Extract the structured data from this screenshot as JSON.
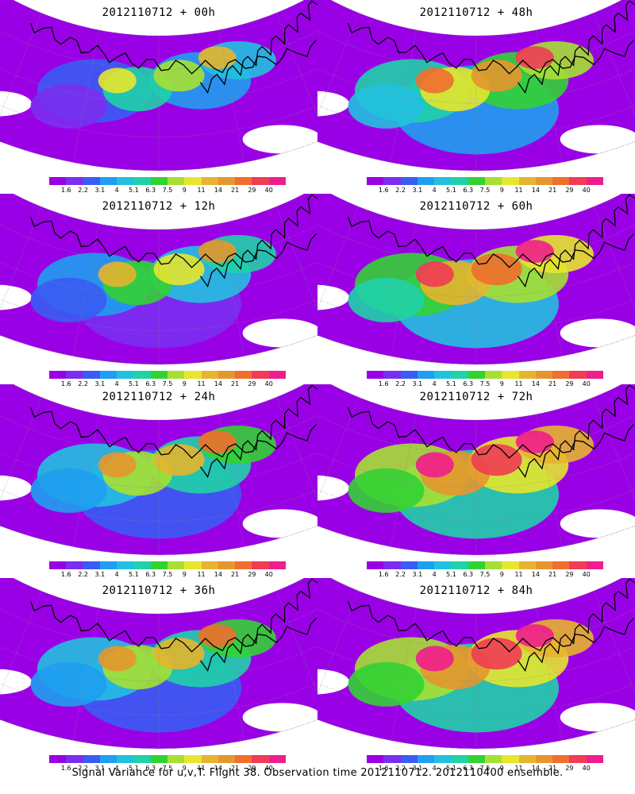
{
  "colorbar": {
    "colors": [
      "#9a00e6",
      "#7a2ef0",
      "#3a5cf2",
      "#1e9ff0",
      "#22c0e0",
      "#1fd2a8",
      "#33d233",
      "#a6e033",
      "#e6e62e",
      "#e6b42e",
      "#e6962e",
      "#f06e2e",
      "#f03c54",
      "#f01e8c"
    ],
    "labels": [
      "1.6",
      "2.2",
      "3.1",
      "4",
      "5.1",
      "6.3",
      "7.5",
      "9",
      "11",
      "14",
      "21",
      "29",
      "40"
    ]
  },
  "panels": [
    {
      "id": "p00",
      "title": "2012110712 + 00h",
      "level": 0
    },
    {
      "id": "p48",
      "title": "2012110712 + 48h",
      "level": 3
    },
    {
      "id": "p12",
      "title": "2012110712 + 12h",
      "level": 1
    },
    {
      "id": "p60",
      "title": "2012110712 + 60h",
      "level": 4
    },
    {
      "id": "p24",
      "title": "2012110712 + 24h",
      "level": 2
    },
    {
      "id": "p72",
      "title": "2012110712 + 72h",
      "level": 5
    },
    {
      "id": "p36",
      "title": "2012110712 + 36h",
      "level": 2
    },
    {
      "id": "p84",
      "title": "2012110712 + 84h",
      "level": 5
    }
  ],
  "footer": "Signal Variance for u,v,T. Flight 38. Observation time 2012110712. 2012110400 ensemble."
}
